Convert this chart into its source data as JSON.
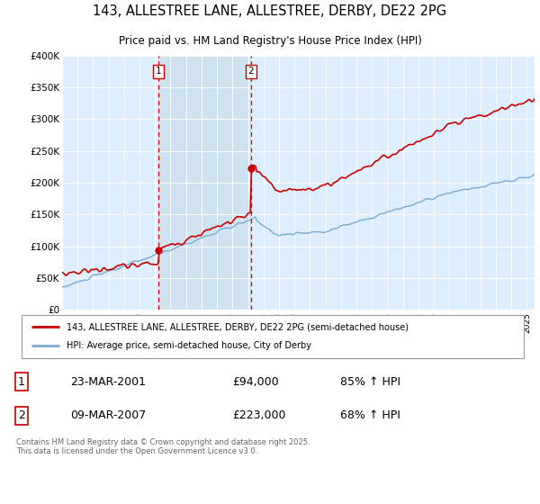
{
  "title1": "143, ALLESTREE LANE, ALLESTREE, DERBY, DE22 2PG",
  "title2": "Price paid vs. HM Land Registry's House Price Index (HPI)",
  "legend1": "143, ALLESTREE LANE, ALLESTREE, DERBY, DE22 2PG (semi-detached house)",
  "legend2": "HPI: Average price, semi-detached house, City of Derby",
  "footnote": "Contains HM Land Registry data © Crown copyright and database right 2025.\nThis data is licensed under the Open Government Licence v3.0.",
  "marker1_date": "23-MAR-2001",
  "marker1_price": "£94,000",
  "marker1_hpi": "85% ↑ HPI",
  "marker1_year": 2001.22,
  "marker1_value": 94000,
  "marker2_date": "09-MAR-2007",
  "marker2_price": "£223,000",
  "marker2_hpi": "68% ↑ HPI",
  "marker2_year": 2007.19,
  "marker2_value": 223000,
  "red_color": "#cc0000",
  "blue_color": "#7aaad0",
  "shade_color": "#cce0f0",
  "bg_color": "#ddeeff",
  "ylim": [
    0,
    400000
  ],
  "xlim_start": 1995.0,
  "xlim_end": 2025.5
}
